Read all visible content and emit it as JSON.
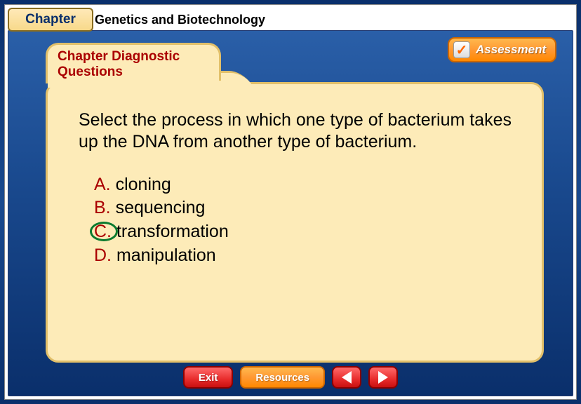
{
  "chapter_badge": "Chapter",
  "chapter_title": "Genetics and Biotechnology",
  "assessment": {
    "label": "Assessment",
    "check_glyph": "✓"
  },
  "tab": {
    "line1": "Chapter Diagnostic",
    "line2": "Questions"
  },
  "question": "Select the process in which one type of bacterium takes up the DNA from another type of bacterium.",
  "answers": [
    {
      "letter": "A.",
      "text": "cloning",
      "circled": false
    },
    {
      "letter": "B.",
      "text": "sequencing",
      "circled": false
    },
    {
      "letter": "C.",
      "text": "transformation",
      "circled": true
    },
    {
      "letter": "D.",
      "text": "manipulation",
      "circled": false
    }
  ],
  "bottom": {
    "exit": "Exit",
    "resources": "Resources"
  },
  "colors": {
    "frame_blue_top": "#2a5fa8",
    "frame_blue_bottom": "#0a2f6b",
    "folder_bg": "#fdebb8",
    "folder_border": "#e2c06a",
    "accent_red": "#aa0000",
    "circle_green": "#0a7a2f",
    "btn_orange": "#ff8800",
    "btn_red": "#e82c2c"
  }
}
